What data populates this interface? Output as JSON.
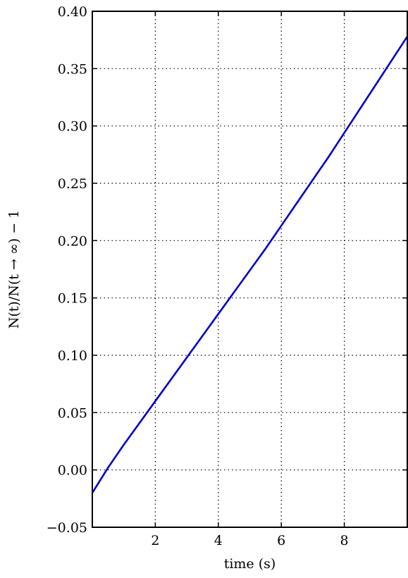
{
  "chart_data": {
    "type": "line",
    "title": "",
    "xlabel": "time (s)",
    "ylabel": "N(t)/N(t → ∞) − 1",
    "xlim": [
      0,
      10
    ],
    "ylim": [
      -0.05,
      0.4
    ],
    "xticks": [
      2,
      4,
      6,
      8
    ],
    "xtick_labels": [
      "2",
      "4",
      "6",
      "8"
    ],
    "yticks": [
      -0.05,
      0.0,
      0.05,
      0.1,
      0.15,
      0.2,
      0.25,
      0.3,
      0.35,
      0.4
    ],
    "ytick_labels": [
      "−0.05",
      "0.00",
      "0.05",
      "0.10",
      "0.15",
      "0.20",
      "0.25",
      "0.30",
      "0.35",
      "0.40"
    ],
    "grid": true,
    "series": [
      {
        "color": "#0000cc",
        "x": [
          0,
          0.5,
          1,
          1.5,
          2,
          2.5,
          3,
          3.5,
          4,
          4.5,
          5,
          5.5,
          6,
          6.5,
          7,
          7.5,
          8,
          8.5,
          9,
          9.5,
          10
        ],
        "y": [
          -0.02,
          0.002,
          0.022,
          0.041,
          0.06,
          0.079,
          0.098,
          0.117,
          0.136,
          0.155,
          0.174,
          0.193,
          0.213,
          0.233,
          0.253,
          0.273,
          0.294,
          0.315,
          0.336,
          0.357,
          0.378
        ]
      }
    ]
  }
}
